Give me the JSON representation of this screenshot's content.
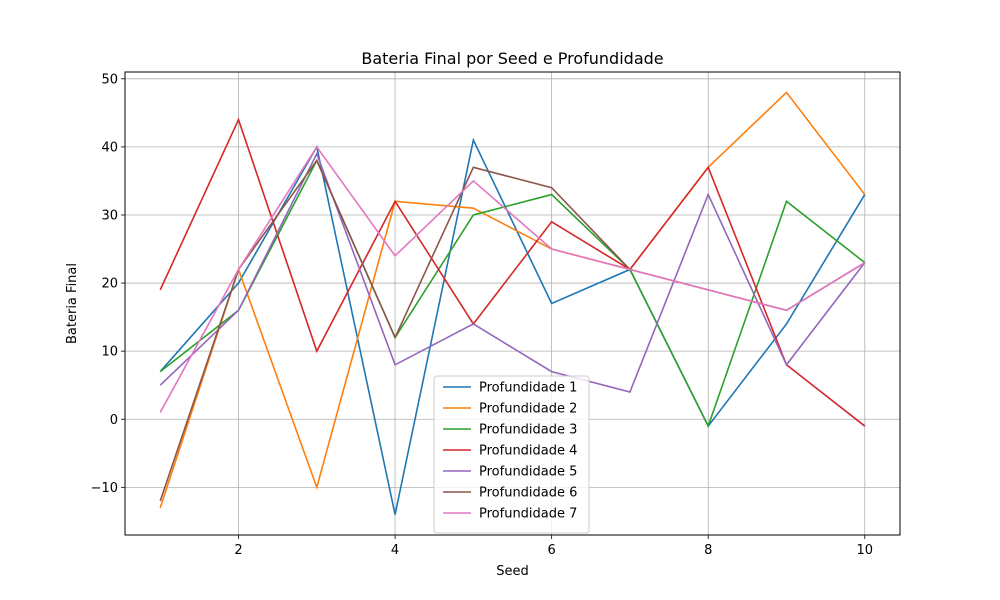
{
  "chart_data": {
    "type": "line",
    "title": "Bateria Final por Seed e Profundidade",
    "xlabel": "Seed",
    "ylabel": "Bateria Final",
    "x": [
      1,
      2,
      3,
      4,
      5,
      6,
      7,
      8,
      9,
      10
    ],
    "xlim": [
      0.55,
      10.45
    ],
    "ylim": [
      -17,
      51
    ],
    "xticks": [
      2,
      4,
      6,
      8,
      10
    ],
    "yticks": [
      -10,
      0,
      10,
      20,
      30,
      40,
      50
    ],
    "grid": true,
    "legend_position": "bottom-center",
    "series": [
      {
        "name": "Profundidade 1",
        "color": "#1f77b4",
        "values": [
          7,
          20,
          40,
          -14,
          41,
          17,
          22,
          -1,
          14,
          33
        ]
      },
      {
        "name": "Profundidade 2",
        "color": "#ff7f0e",
        "values": [
          -13,
          22,
          -10,
          32,
          31,
          25,
          22,
          37,
          48,
          33
        ]
      },
      {
        "name": "Profundidade 3",
        "color": "#2ca02c",
        "values": [
          7,
          16,
          38,
          12,
          30,
          33,
          22,
          -1,
          32,
          23
        ]
      },
      {
        "name": "Profundidade 4",
        "color": "#d62728",
        "values": [
          19,
          44,
          10,
          32,
          14,
          29,
          22,
          37,
          8,
          -1
        ]
      },
      {
        "name": "Profundidade 5",
        "color": "#9467bd",
        "values": [
          5,
          16,
          39,
          8,
          14,
          7,
          4,
          33,
          8,
          23
        ]
      },
      {
        "name": "Profundidade 6",
        "color": "#8c564b",
        "values": [
          -12,
          22,
          38,
          12,
          37,
          34,
          22,
          19,
          16,
          23
        ]
      },
      {
        "name": "Profundidade 7",
        "color": "#e377c2",
        "values": [
          1,
          22,
          40,
          24,
          35,
          25,
          22,
          19,
          16,
          23
        ]
      }
    ]
  }
}
